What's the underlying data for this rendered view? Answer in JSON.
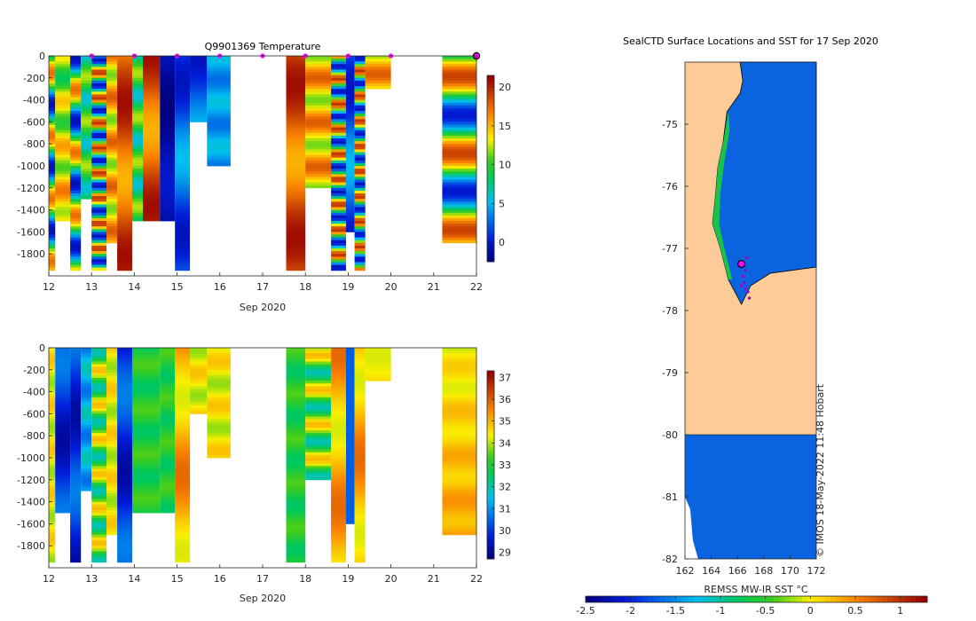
{
  "colors": {
    "land": "#fccb98",
    "ocean_cold": "#0a64e0",
    "ocean_edge_green": "#19c34b",
    "ocean_edge_cyan": "#14b4e6",
    "marker_magenta": "#ff00ff",
    "axis": "#262626"
  },
  "chart_data": [
    {
      "id": "temperature",
      "type": "heatmap",
      "title": "Q9901369  Temperature",
      "xlabel": "Sep 2020",
      "ylabel": "",
      "xlim": [
        12,
        22
      ],
      "ylim": [
        -2000,
        0
      ],
      "xticks": [
        "12",
        "13",
        "14",
        "15",
        "16",
        "17",
        "18",
        "19",
        "20",
        "21",
        "22"
      ],
      "yticks": [
        "0",
        "-200",
        "-400",
        "-600",
        "-800",
        "-1000",
        "-1200",
        "-1400",
        "-1600",
        "-1800"
      ],
      "colorbar": {
        "min": -2.5,
        "max": 21.5,
        "ticks": [
          "0",
          "5",
          "10",
          "15",
          "20"
        ]
      },
      "surface_markers": [
        13,
        14,
        15,
        16,
        17,
        18,
        19,
        20
      ],
      "profiles": [
        {
          "x0": 12.0,
          "x1": 12.15,
          "bottom": -1950,
          "pattern": "mixed"
        },
        {
          "x0": 12.15,
          "x1": 12.5,
          "bottom": -1500,
          "pattern": "warm-deep"
        },
        {
          "x0": 12.5,
          "x1": 12.75,
          "bottom": -1950,
          "pattern": "mixed"
        },
        {
          "x0": 12.75,
          "x1": 13.0,
          "bottom": -1300,
          "pattern": "green"
        },
        {
          "x0": 13.0,
          "x1": 13.35,
          "bottom": -1950,
          "pattern": "banded"
        },
        {
          "x0": 13.35,
          "x1": 13.6,
          "bottom": -1700,
          "pattern": "warm"
        },
        {
          "x0": 13.6,
          "x1": 13.95,
          "bottom": -1950,
          "pattern": "hot"
        },
        {
          "x0": 13.95,
          "x1": 14.2,
          "bottom": -1500,
          "pattern": "green"
        },
        {
          "x0": 14.2,
          "x1": 14.6,
          "bottom": -1500,
          "pattern": "hot"
        },
        {
          "x0": 14.6,
          "x1": 14.95,
          "bottom": -1500,
          "pattern": "cold"
        },
        {
          "x0": 14.95,
          "x1": 15.3,
          "bottom": -1950,
          "pattern": "blue"
        },
        {
          "x0": 15.3,
          "x1": 15.7,
          "bottom": -600,
          "pattern": "blue"
        },
        {
          "x0": 15.7,
          "x1": 16.25,
          "bottom": -1000,
          "pattern": "light"
        },
        {
          "x0": 17.55,
          "x1": 18.0,
          "bottom": -1950,
          "pattern": "hot"
        },
        {
          "x0": 18.0,
          "x1": 18.6,
          "bottom": -1200,
          "pattern": "warm"
        },
        {
          "x0": 18.6,
          "x1": 18.95,
          "bottom": -1950,
          "pattern": "banded"
        },
        {
          "x0": 18.95,
          "x1": 19.15,
          "bottom": -1600,
          "pattern": "blue"
        },
        {
          "x0": 19.15,
          "x1": 19.4,
          "bottom": -1950,
          "pattern": "banded"
        },
        {
          "x0": 19.4,
          "x1": 20.0,
          "bottom": -300,
          "pattern": "warm"
        },
        {
          "x0": 21.2,
          "x1": 22.0,
          "bottom": -1700,
          "pattern": "layered"
        }
      ]
    },
    {
      "id": "salinity",
      "type": "heatmap",
      "title": "",
      "xlabel": "Sep 2020",
      "ylabel": "",
      "xlim": [
        12,
        22
      ],
      "ylim": [
        -2000,
        0
      ],
      "xticks": [
        "12",
        "13",
        "14",
        "15",
        "16",
        "17",
        "18",
        "19",
        "20",
        "21",
        "22"
      ],
      "yticks": [
        "0",
        "-200",
        "-400",
        "-600",
        "-800",
        "-1000",
        "-1200",
        "-1400",
        "-1600",
        "-1800"
      ],
      "colorbar": {
        "min": 28.7,
        "max": 37.3,
        "ticks": [
          "29",
          "30",
          "31",
          "32",
          "33",
          "34",
          "35",
          "36",
          "37"
        ]
      },
      "profiles": [
        {
          "x0": 12.0,
          "x1": 12.15,
          "bottom": -1950,
          "pattern": "s-yellow"
        },
        {
          "x0": 12.15,
          "x1": 12.5,
          "bottom": -1500,
          "pattern": "s-dark"
        },
        {
          "x0": 12.5,
          "x1": 12.75,
          "bottom": -1950,
          "pattern": "s-dark"
        },
        {
          "x0": 12.75,
          "x1": 13.0,
          "bottom": -1300,
          "pattern": "s-cyan"
        },
        {
          "x0": 13.0,
          "x1": 13.35,
          "bottom": -1950,
          "pattern": "s-mixed"
        },
        {
          "x0": 13.35,
          "x1": 13.6,
          "bottom": -1700,
          "pattern": "s-yellow"
        },
        {
          "x0": 13.6,
          "x1": 13.95,
          "bottom": -1950,
          "pattern": "s-dark"
        },
        {
          "x0": 13.95,
          "x1": 14.6,
          "bottom": -1500,
          "pattern": "s-green"
        },
        {
          "x0": 14.6,
          "x1": 14.95,
          "bottom": -1500,
          "pattern": "s-green"
        },
        {
          "x0": 14.95,
          "x1": 15.3,
          "bottom": -1950,
          "pattern": "s-orange"
        },
        {
          "x0": 15.3,
          "x1": 15.7,
          "bottom": -600,
          "pattern": "s-yellow"
        },
        {
          "x0": 15.7,
          "x1": 16.25,
          "bottom": -1000,
          "pattern": "s-yellow"
        },
        {
          "x0": 17.55,
          "x1": 18.0,
          "bottom": -1950,
          "pattern": "s-green"
        },
        {
          "x0": 18.0,
          "x1": 18.6,
          "bottom": -1200,
          "pattern": "s-mixed"
        },
        {
          "x0": 18.6,
          "x1": 18.95,
          "bottom": -1950,
          "pattern": "s-orange"
        },
        {
          "x0": 18.95,
          "x1": 19.15,
          "bottom": -1600,
          "pattern": "s-blue"
        },
        {
          "x0": 19.15,
          "x1": 19.4,
          "bottom": -1950,
          "pattern": "s-orange"
        },
        {
          "x0": 19.4,
          "x1": 20.0,
          "bottom": -300,
          "pattern": "s-orange"
        },
        {
          "x0": 21.2,
          "x1": 22.0,
          "bottom": -1700,
          "pattern": "s-layered"
        }
      ]
    },
    {
      "id": "sst-map",
      "type": "heatmap",
      "title": "SealCTD Surface Locations and SST for 17 Sep 2020",
      "xlabel": "",
      "ylabel": "",
      "xlim": [
        162,
        172
      ],
      "ylim": [
        -82,
        -74
      ],
      "xticks": [
        "162",
        "164",
        "166",
        "168",
        "170",
        "172"
      ],
      "yticks": [
        "-75",
        "-76",
        "-77",
        "-78",
        "-79",
        "-80",
        "-81",
        "-82"
      ],
      "colorbar": {
        "label": "REMSS MW-IR SST °C",
        "min": -2.5,
        "max": 1.3,
        "ticks": [
          "-2.5",
          "-2",
          "-1.5",
          "-1",
          "-0.5",
          "0",
          "0.5",
          "1"
        ]
      },
      "watermark": "© IMOS 18-May-2022 11:48 Hobart",
      "land_fill": "#fccb98",
      "ocean_fill": "#0a64e0",
      "track": [
        {
          "lon": 166.7,
          "lat": -77.15
        },
        {
          "lon": 166.5,
          "lat": -77.25
        },
        {
          "lon": 166.6,
          "lat": -77.35
        },
        {
          "lon": 166.4,
          "lat": -77.45
        },
        {
          "lon": 166.5,
          "lat": -77.55
        },
        {
          "lon": 166.3,
          "lat": -77.6
        },
        {
          "lon": 166.6,
          "lat": -77.65
        },
        {
          "lon": 166.8,
          "lat": -77.7
        },
        {
          "lon": 166.9,
          "lat": -77.8
        }
      ],
      "latest_position": {
        "lon": 166.3,
        "lat": -77.25
      }
    }
  ]
}
